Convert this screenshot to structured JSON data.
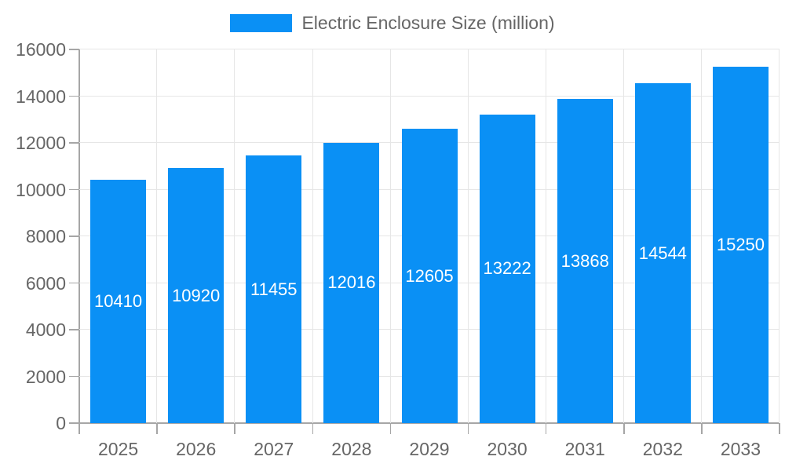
{
  "legend": {
    "label": "Electric Enclosure Size (million)"
  },
  "chart_data": {
    "type": "bar",
    "title": "Electric Enclosure Size (million)",
    "categories": [
      "2025",
      "2026",
      "2027",
      "2028",
      "2029",
      "2030",
      "2031",
      "2032",
      "2033"
    ],
    "series": [
      {
        "name": "Electric Enclosure Size (million)",
        "values": [
          10410,
          10920,
          11455,
          12016,
          12605,
          13222,
          13868,
          14544,
          15250
        ]
      }
    ],
    "value_labels": [
      "10410",
      "10920",
      "11455",
      "12016",
      "12605",
      "13222",
      "13868",
      "14544",
      "15250"
    ],
    "xlabel": "",
    "ylabel": "",
    "ylim": [
      0,
      16000
    ],
    "y_ticks": [
      0,
      2000,
      4000,
      6000,
      8000,
      10000,
      12000,
      14000,
      16000
    ],
    "grid": true,
    "legend_position": "top",
    "colors": {
      "bar": "#0a90f5",
      "grid": "#e6e6e6",
      "axis": "#a6a6a6",
      "tick_text": "#666666",
      "legend_text": "#666666",
      "value_label": "#ffffff",
      "background": "#ffffff"
    }
  }
}
